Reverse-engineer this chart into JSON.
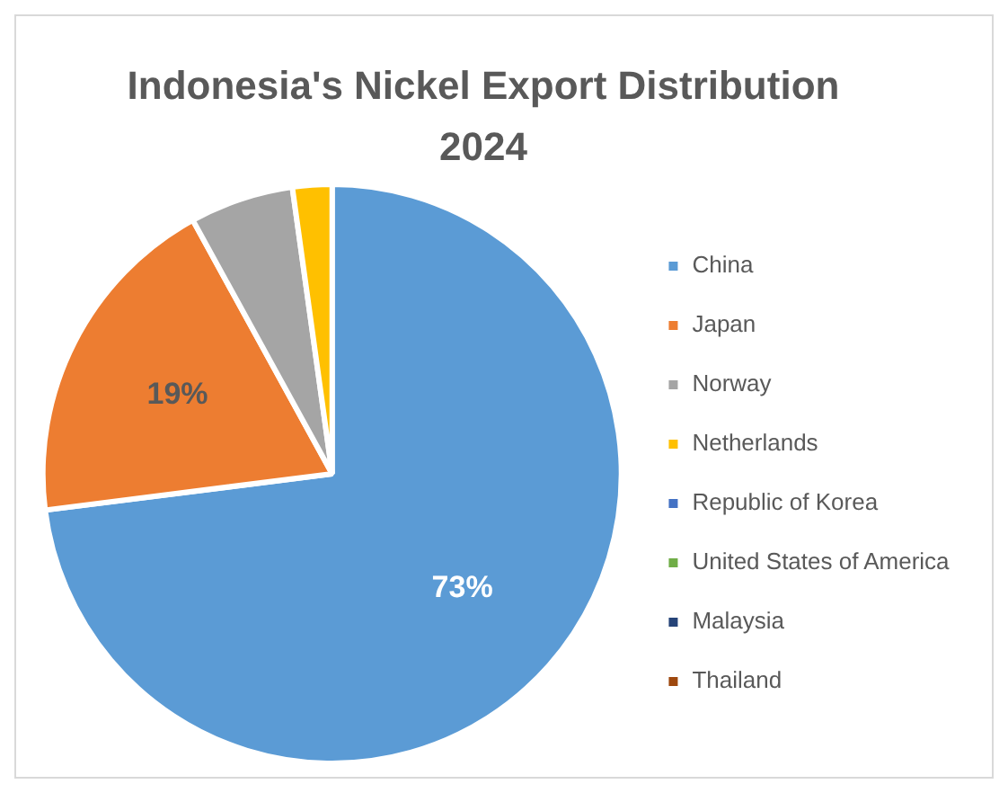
{
  "chart_data": {
    "type": "pie",
    "title": "Indonesia's Nickel Export Distribution 2024",
    "categories": [
      "China",
      "Japan",
      "Norway",
      "Netherlands",
      "Republic of Korea",
      "United States of America",
      "Malaysia",
      "Thailand"
    ],
    "values": [
      73,
      19,
      5.8,
      2.2,
      0,
      0,
      0,
      0
    ],
    "colors": [
      "#5b9bd5",
      "#ed7d31",
      "#a5a5a5",
      "#ffc000",
      "#4472c4",
      "#70ad47",
      "#264478",
      "#9e480e"
    ],
    "value_labels": [
      "73%",
      "19%",
      null,
      null,
      null,
      null,
      null,
      null
    ],
    "legend": "right"
  }
}
